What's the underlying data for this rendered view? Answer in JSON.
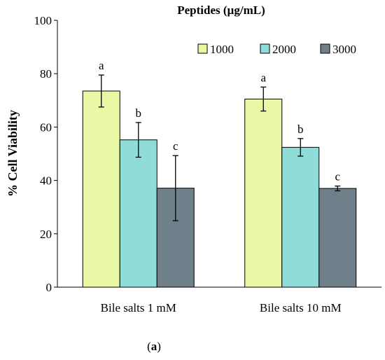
{
  "chart_data": {
    "type": "bar",
    "legend_title": "Peptides (µg/mL)",
    "ylabel": "% Cell Viability",
    "xlabel": "",
    "ylim": [
      0,
      100
    ],
    "yticks": [
      0,
      20,
      40,
      60,
      80,
      100
    ],
    "categories": [
      "Bile salts 1 mM",
      "Bile salts 10 mM"
    ],
    "series": [
      {
        "name": "1000",
        "values": [
          73.5,
          70.5
        ],
        "errors": [
          6.0,
          4.5
        ],
        "letters": [
          "a",
          "a"
        ],
        "color": "#e8f8a4"
      },
      {
        "name": "2000",
        "values": [
          55.2,
          52.4
        ],
        "errors": [
          6.5,
          3.3
        ],
        "letters": [
          "b",
          "b"
        ],
        "color": "#8fdcd8"
      },
      {
        "name": "3000",
        "values": [
          37.1,
          37.0
        ],
        "errors": [
          12.2,
          0.9
        ],
        "letters": [
          "c",
          "c"
        ],
        "color": "#6f808a"
      }
    ],
    "grid": false,
    "legend_position": "top-right",
    "caption": "(a)"
  }
}
